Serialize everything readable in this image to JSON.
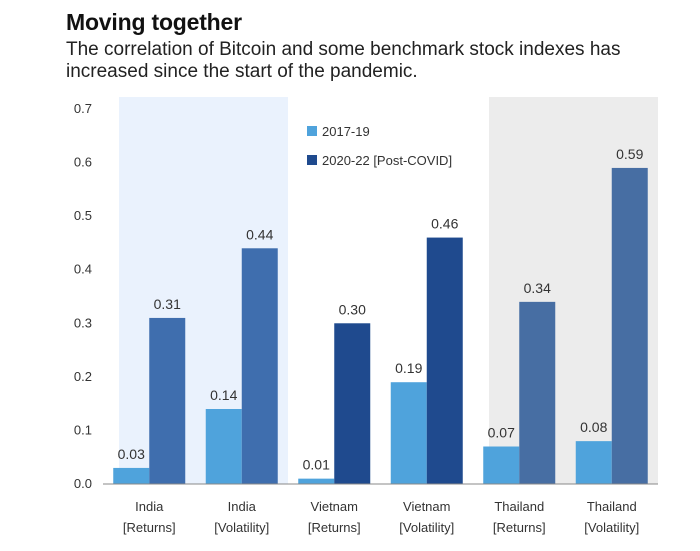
{
  "header": {
    "title": "Moving together",
    "subtitle": "The correlation of Bitcoin and some benchmark stock indexes has increased since the start of the pandemic."
  },
  "chart_data": {
    "type": "bar",
    "categories": [
      [
        "India",
        "[Returns]"
      ],
      [
        "India",
        "[Volatility]"
      ],
      [
        "Vietnam",
        "[Returns]"
      ],
      [
        "Vietnam",
        "[Volatility]"
      ],
      [
        "Thailand",
        "[Returns]"
      ],
      [
        "Thailand",
        "[Volatility]"
      ]
    ],
    "series": [
      {
        "name": "2017-19",
        "values": [
          0.03,
          0.14,
          0.01,
          0.19,
          0.07,
          0.08
        ],
        "labels": [
          "0.03",
          "0.14",
          "0.01",
          "0.19",
          "0.07",
          "0.08"
        ]
      },
      {
        "name": "2020-22 [Post-COVID]",
        "values": [
          0.31,
          0.44,
          0.3,
          0.46,
          0.34,
          0.59
        ],
        "labels": [
          "0.31",
          "0.44",
          "0.30",
          "0.46",
          "0.34",
          "0.59"
        ]
      }
    ],
    "ylim": [
      0,
      0.7
    ],
    "yticks": [
      "0.0",
      "0.1",
      "0.2",
      "0.3",
      "0.4",
      "0.5",
      "0.6",
      "0.7"
    ],
    "shaded_groups": [
      {
        "categories": [
          0,
          1
        ],
        "color": "#eaf2fd"
      },
      {
        "categories": [
          4,
          5
        ],
        "color": "#ececec"
      }
    ],
    "legend_position": "top-center",
    "grid": false,
    "colors": {
      "series_light": "#4fa3dc",
      "india_dark": "#3f6eae",
      "vietnam_dark": "#1f4a8e",
      "thailand_dark": "#476ea3"
    }
  }
}
